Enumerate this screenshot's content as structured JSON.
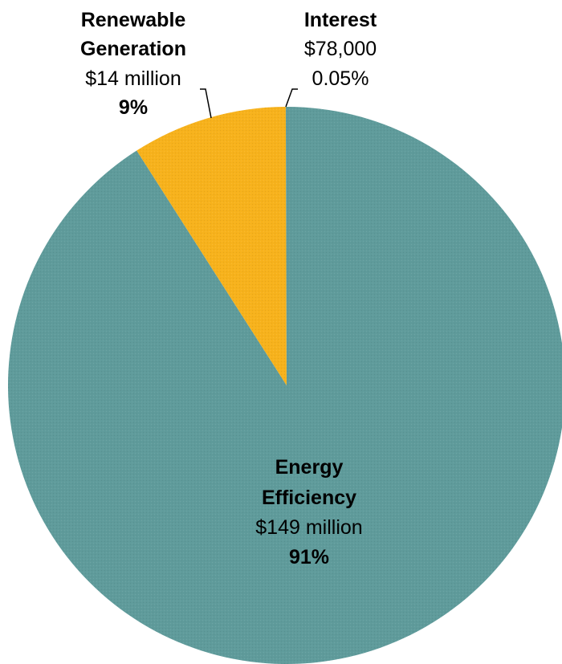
{
  "chart_data": {
    "type": "pie",
    "title": "",
    "start_angle_deg": 0,
    "direction": "clockwise",
    "slices": [
      {
        "key": "energy_efficiency",
        "name_line1": "Energy",
        "name_line2": "Efficiency",
        "amount_label": "$149 million",
        "percent_label": "91%",
        "value": 91,
        "color": "#5f9b9b"
      },
      {
        "key": "renewable_generation",
        "name_line1": "Renewable",
        "name_line2": "Generation",
        "amount_label": "$14 million",
        "percent_label": "9%",
        "value": 9,
        "color": "#f7b21c"
      },
      {
        "key": "interest",
        "name_line1": "Interest",
        "name_line2": "",
        "amount_label": "$78,000",
        "percent_label": "0.05%",
        "value": 0.05,
        "color": "#5f9b9b"
      }
    ]
  }
}
